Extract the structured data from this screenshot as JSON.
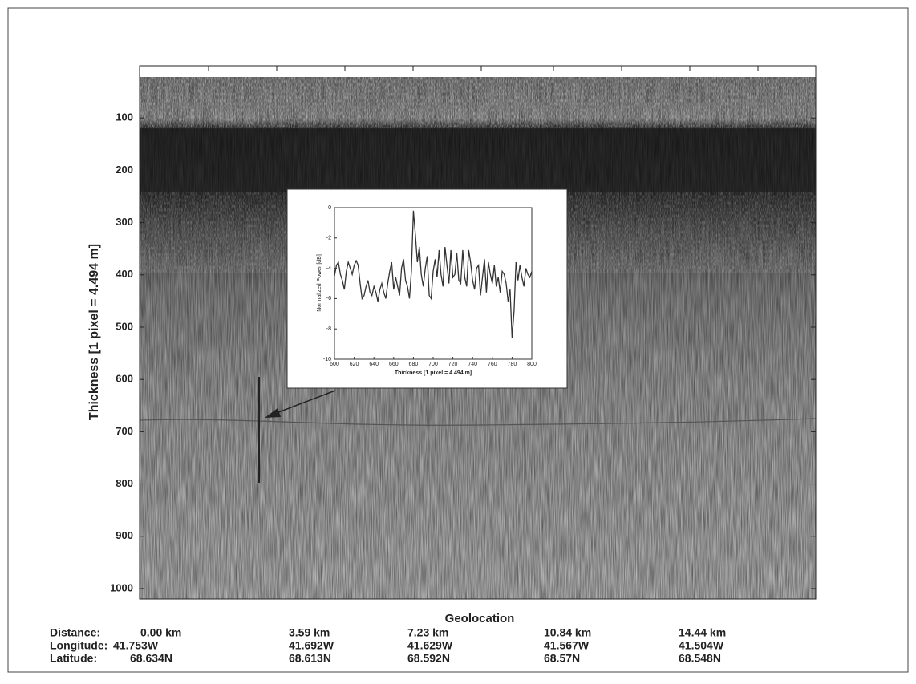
{
  "chart_data": {
    "type": "echogram",
    "ylabel": "Thickness [1 pixel = 4.494 m]",
    "ylim": [
      0,
      1020
    ],
    "yticks": [
      100,
      200,
      300,
      400,
      500,
      600,
      700,
      800,
      900,
      1000
    ],
    "xlabel": "Geolocation",
    "geolocation": [
      {
        "label": "Distance:",
        "values": [
          "0.00 km",
          "3.59 km",
          "7.23 km",
          "10.84 km",
          "14.44 km"
        ]
      },
      {
        "label": "Longitude:",
        "values": [
          "41.753W",
          "41.692W",
          "41.629W",
          "41.567W",
          "41.504W"
        ]
      },
      {
        "label": "Latitude:",
        "values": [
          "68.634N",
          "68.613N",
          "68.592N",
          "68.57N",
          "68.548N"
        ]
      }
    ],
    "inset": {
      "type": "line",
      "color": "#333333",
      "xlabel": "Thickness [1 pixel = 4.494 m]",
      "ylabel": "Normalized Power [dB]",
      "xlim": [
        600,
        800
      ],
      "xticks": [
        600,
        620,
        640,
        660,
        680,
        700,
        720,
        740,
        760,
        780,
        800
      ],
      "ylim": [
        -10,
        0
      ],
      "yticks": [
        0,
        -2,
        -4,
        -6,
        -8,
        -10
      ],
      "x": [
        600,
        602,
        604,
        606,
        608,
        610,
        612,
        614,
        616,
        618,
        620,
        622,
        624,
        626,
        628,
        630,
        632,
        634,
        636,
        638,
        640,
        642,
        644,
        646,
        648,
        650,
        652,
        654,
        656,
        658,
        660,
        662,
        664,
        666,
        668,
        670,
        672,
        674,
        676,
        678,
        680,
        682,
        684,
        686,
        688,
        690,
        692,
        694,
        696,
        698,
        700,
        702,
        704,
        706,
        708,
        710,
        712,
        714,
        716,
        718,
        720,
        722,
        724,
        726,
        728,
        730,
        732,
        734,
        736,
        738,
        740,
        742,
        744,
        746,
        748,
        750,
        752,
        754,
        756,
        758,
        760,
        762,
        764,
        766,
        768,
        770,
        772,
        774,
        776,
        778,
        780,
        782,
        784,
        786,
        788,
        790,
        792,
        794,
        796,
        798,
        800
      ],
      "values": [
        -4.5,
        -3.8,
        -3.6,
        -4.4,
        -4.8,
        -5.4,
        -4.2,
        -3.6,
        -4.0,
        -4.4,
        -3.8,
        -3.5,
        -3.8,
        -5.0,
        -6.0,
        -5.8,
        -5.2,
        -4.8,
        -5.6,
        -5.8,
        -5.2,
        -5.6,
        -6.2,
        -5.4,
        -5.0,
        -5.6,
        -6.0,
        -5.0,
        -4.2,
        -3.6,
        -5.4,
        -4.6,
        -5.2,
        -5.8,
        -4.0,
        -3.4,
        -4.8,
        -5.2,
        -6.0,
        -4.2,
        -0.2,
        -1.8,
        -3.6,
        -2.6,
        -4.4,
        -5.2,
        -4.0,
        -3.2,
        -5.8,
        -6.0,
        -4.2,
        -3.4,
        -4.6,
        -2.8,
        -4.4,
        -5.2,
        -2.6,
        -3.8,
        -5.0,
        -2.8,
        -4.6,
        -4.4,
        -3.0,
        -4.8,
        -5.0,
        -2.8,
        -4.6,
        -5.2,
        -2.8,
        -3.6,
        -4.8,
        -5.4,
        -4.0,
        -3.8,
        -5.8,
        -4.6,
        -3.4,
        -5.6,
        -3.6,
        -4.4,
        -5.0,
        -3.8,
        -5.2,
        -4.6,
        -5.6,
        -4.2,
        -4.4,
        -5.0,
        -6.2,
        -5.4,
        -8.6,
        -6.8,
        -3.6,
        -4.8,
        -3.8,
        -4.6,
        -5.2,
        -4.0,
        -4.4,
        -4.6,
        -4.2
      ]
    }
  }
}
